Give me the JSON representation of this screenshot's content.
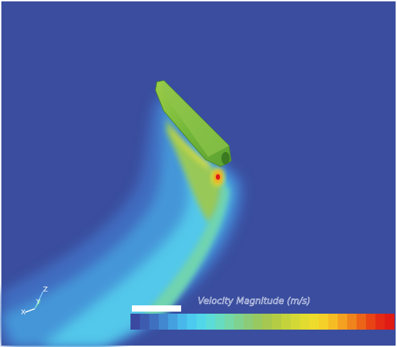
{
  "colorbar": {
    "title": "Velocity Magnitude (m/s)",
    "colors": [
      "#3a48a0",
      "#3d5cb0",
      "#3f70c0",
      "#4288d0",
      "#45a0e0",
      "#48b8ea",
      "#4ccaf0",
      "#52d6ea",
      "#5cdcd8",
      "#68dcc0",
      "#74d8a8",
      "#80d290",
      "#8ccc78",
      "#98c860",
      "#a6c850",
      "#b4cc44",
      "#c4d23c",
      "#d4d836",
      "#e2dc30",
      "#eedc2c",
      "#f4d028",
      "#f6bc24",
      "#f4a020",
      "#f0841c",
      "#ec6418",
      "#e84416",
      "#e42a14",
      "#e01a14"
    ]
  },
  "axes": {
    "x": "X",
    "y": "Y",
    "z": "Z"
  }
}
